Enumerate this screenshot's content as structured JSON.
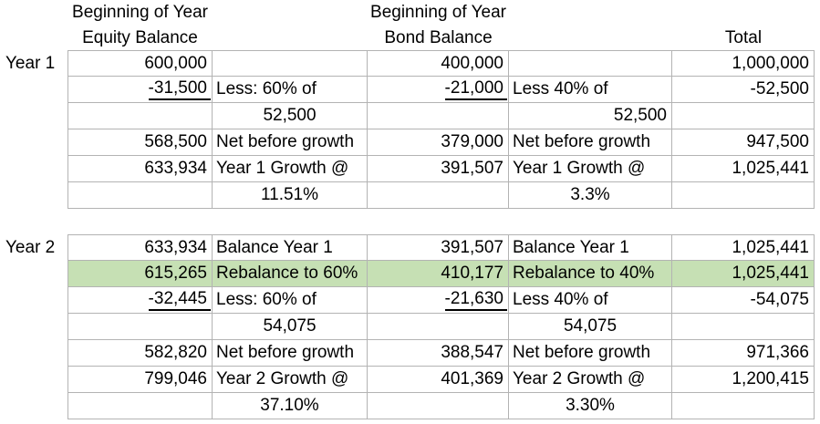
{
  "headers": {
    "equity_group": "Beginning of Year",
    "equity_col": "Equity Balance",
    "bond_group": "Beginning of Year",
    "bond_col": "Bond Balance",
    "total_col": "Total"
  },
  "highlight_color": "#c6e0b4",
  "year1": {
    "label": "Year 1",
    "rows": [
      {
        "eq": "600,000",
        "eq_lbl": "",
        "bond": "400,000",
        "bond_lbl": "",
        "total": "1,000,000"
      },
      {
        "eq": "-31,500",
        "eq_lbl": "Less: 60% of",
        "bond": "-21,000",
        "bond_lbl": "Less 40% of",
        "total": "-52,500"
      },
      {
        "eq": "",
        "eq_lbl": "52,500",
        "bond": "",
        "bond_lbl": "52,500",
        "total": ""
      },
      {
        "eq": "568,500",
        "eq_lbl": "Net before growth",
        "bond": "379,000",
        "bond_lbl": "Net before growth",
        "total": "947,500"
      },
      {
        "eq": "633,934",
        "eq_lbl": "Year 1 Growth @",
        "bond": "391,507",
        "bond_lbl": "Year 1 Growth @",
        "total": "1,025,441"
      },
      {
        "eq": "",
        "eq_lbl": "11.51%",
        "bond": "",
        "bond_lbl": "3.3%",
        "total": ""
      }
    ]
  },
  "year2": {
    "label": "Year 2",
    "rows": [
      {
        "eq": "633,934",
        "eq_lbl": "Balance Year 1",
        "bond": "391,507",
        "bond_lbl": "Balance Year 1",
        "total": "1,025,441"
      },
      {
        "eq": "615,265",
        "eq_lbl": "Rebalance to 60%",
        "bond": "410,177",
        "bond_lbl": "Rebalance to 40%",
        "total": "1,025,441"
      },
      {
        "eq": "-32,445",
        "eq_lbl": "Less: 60% of",
        "bond": "-21,630",
        "bond_lbl": "Less 40% of",
        "total": "-54,075"
      },
      {
        "eq": "",
        "eq_lbl": "54,075",
        "bond": "",
        "bond_lbl": "54,075",
        "total": ""
      },
      {
        "eq": "582,820",
        "eq_lbl": "Net before growth",
        "bond": "388,547",
        "bond_lbl": "Net before growth",
        "total": "971,366"
      },
      {
        "eq": "799,046",
        "eq_lbl": "Year 2 Growth @",
        "bond": "401,369",
        "bond_lbl": "Year 2 Growth @",
        "total": "1,200,415"
      },
      {
        "eq": "",
        "eq_lbl": "37.10%",
        "bond": "",
        "bond_lbl": "3.30%",
        "total": ""
      }
    ]
  }
}
